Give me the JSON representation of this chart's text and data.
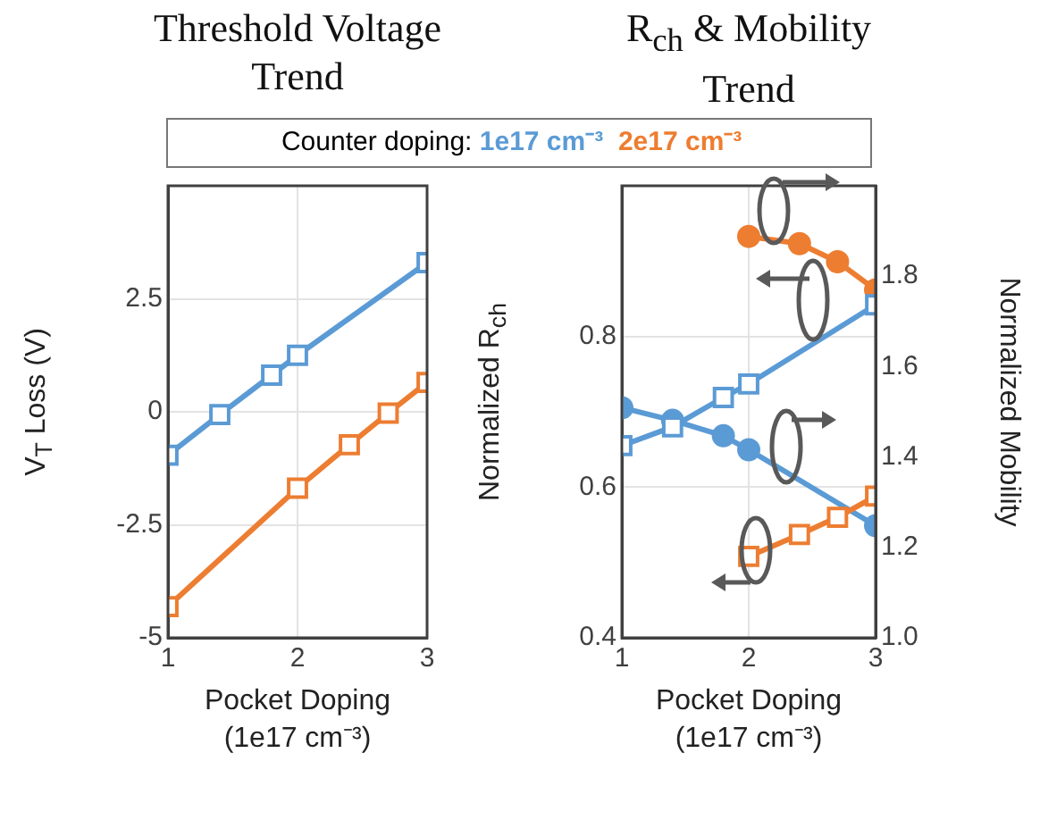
{
  "chart_data": [
    {
      "type": "line",
      "title": "Threshold Voltage Trend",
      "xlabel": "Pocket Doping (1e17 cm⁻³)",
      "ylabel": "V$_{T}$ Loss (V)",
      "legend_title": "Counter doping:",
      "legend": "top",
      "grid": true,
      "marker": "square",
      "xlim": [
        1,
        3
      ],
      "xticks": [
        1,
        2,
        3
      ],
      "ylim": [
        -5,
        5
      ],
      "yticks": [
        -5,
        -2.5,
        0,
        2.5
      ],
      "series": [
        {
          "name": "1e17 cm⁻³",
          "color": "#5b9bd5",
          "x": [
            1,
            1.4,
            1.8,
            2,
            3
          ],
          "values": [
            -0.96,
            -0.06,
            0.81,
            1.25,
            3.3
          ]
        },
        {
          "name": "2e17 cm⁻³",
          "color": "#ed7d31",
          "x": [
            1,
            2,
            2.4,
            2.7,
            3
          ],
          "values": [
            -4.31,
            -1.69,
            -0.73,
            -0.03,
            0.65
          ]
        }
      ]
    },
    {
      "type": "line",
      "title": "R$_{ch}$ & Mobility Trend",
      "xlabel": "Pocket Doping (1e17 cm⁻³)",
      "ylabel": "Normalized R$_{ch}$",
      "y2label": "Normalized Mobility",
      "grid": true,
      "xlim": [
        1,
        3
      ],
      "xticks": [
        1,
        2,
        3
      ],
      "ylim": [
        0.4,
        1.0
      ],
      "yticks": [
        0.4,
        0.6,
        0.8
      ],
      "y2lim": [
        1.0,
        2.0
      ],
      "y2ticks": [
        {
          "value": 1.0,
          "label": "1.0"
        },
        1.2,
        1.4,
        1.6,
        1.8
      ],
      "series": [
        {
          "color": "#5b9bd5",
          "marker": "square",
          "x": [
            1,
            1.4,
            1.8,
            2,
            3
          ],
          "values": [
            0.655,
            0.68,
            0.719,
            0.737,
            0.842
          ]
        },
        {
          "color": "#ed7d31",
          "marker": "square",
          "x": [
            2,
            2.4,
            2.7,
            3
          ],
          "values": [
            0.508,
            0.537,
            0.56,
            0.588
          ]
        },
        {
          "color": "#5b9bd5",
          "marker": "circle",
          "axis": "y2",
          "x": [
            1,
            1.4,
            1.8,
            2,
            3
          ],
          "values": [
            1.509,
            1.481,
            1.447,
            1.416,
            1.248
          ]
        },
        {
          "color": "#ed7d31",
          "marker": "circle",
          "axis": "y2",
          "x": [
            2,
            2.4,
            2.7,
            3
          ],
          "values": [
            1.888,
            1.872,
            1.832,
            1.77
          ]
        }
      ]
    }
  ]
}
